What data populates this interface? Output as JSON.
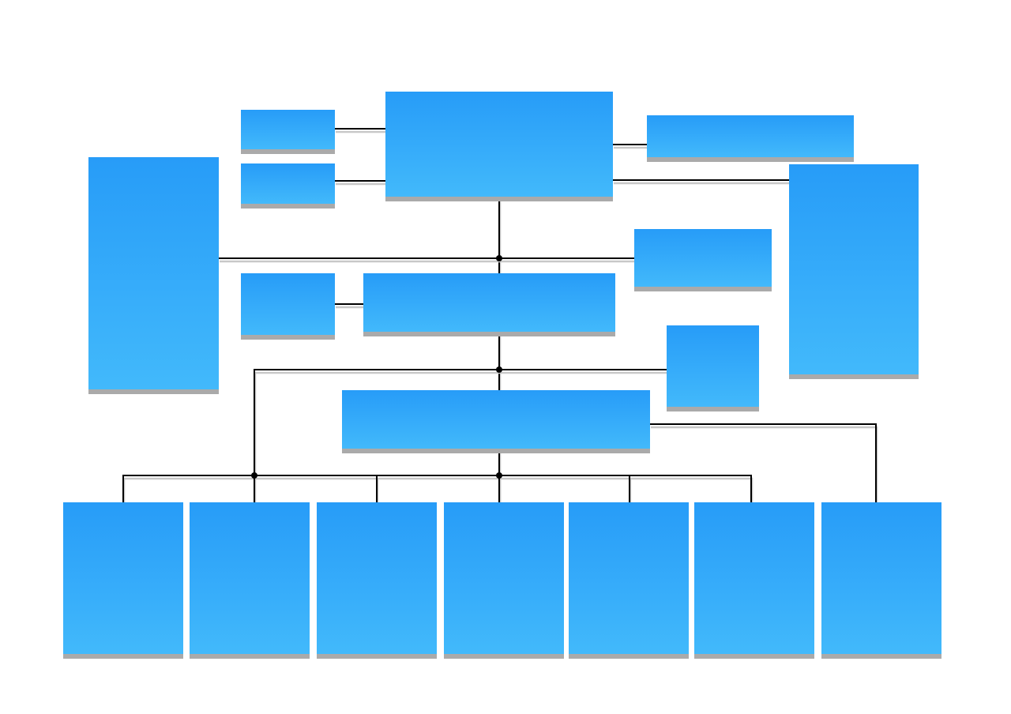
{
  "diagram": {
    "type": "org-chart",
    "colors": {
      "box_top": "#279cf8",
      "box_bottom": "#42b9fb",
      "shadow": "#aaaaaa",
      "connector": "#000000",
      "connector_shadow": "#c8c8c8",
      "background": "#ffffff"
    }
  }
}
